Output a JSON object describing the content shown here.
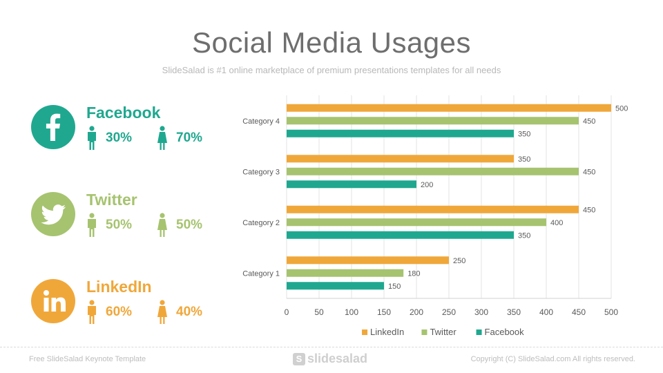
{
  "title": "Social Media Usages",
  "subtitle": "SlideSalad is #1 online marketplace of premium presentations templates for all needs",
  "colors": {
    "facebook": "#1fa88f",
    "twitter": "#a6c36f",
    "linkedin": "#f0a73a",
    "grid": "#e3e3e3",
    "text": "#595959"
  },
  "socials": [
    {
      "name": "Facebook",
      "male_pct": "30%",
      "female_pct": "70%",
      "icon": "facebook-icon",
      "color": "#1fa88f"
    },
    {
      "name": "Twitter",
      "male_pct": "50%",
      "female_pct": "50%",
      "icon": "twitter-icon",
      "color": "#a6c36f"
    },
    {
      "name": "LinkedIn",
      "male_pct": "60%",
      "female_pct": "40%",
      "icon": "linkedin-icon",
      "color": "#f0a73a"
    }
  ],
  "chart_data": {
    "type": "bar",
    "orientation": "horizontal",
    "categories": [
      "Category 1",
      "Category 2",
      "Category 3",
      "Category 4"
    ],
    "series": [
      {
        "name": "LinkedIn",
        "color": "#f0a73a",
        "values": [
          250,
          450,
          350,
          500
        ]
      },
      {
        "name": "Twitter",
        "color": "#a6c36f",
        "values": [
          180,
          400,
          450,
          450
        ]
      },
      {
        "name": "Facebook",
        "color": "#1fa88f",
        "values": [
          150,
          350,
          200,
          350
        ]
      }
    ],
    "xlim": [
      0,
      500
    ],
    "xticks": [
      0,
      50,
      100,
      150,
      200,
      250,
      300,
      350,
      400,
      450,
      500
    ],
    "grid": true,
    "legend": "bottom",
    "data_labels": true
  },
  "footer": {
    "left": "Free SlideSalad Keynote Template",
    "logo": "slidesalad",
    "logo_mark": "S",
    "right": "Copyright (C) SlideSalad.com All rights reserved."
  }
}
